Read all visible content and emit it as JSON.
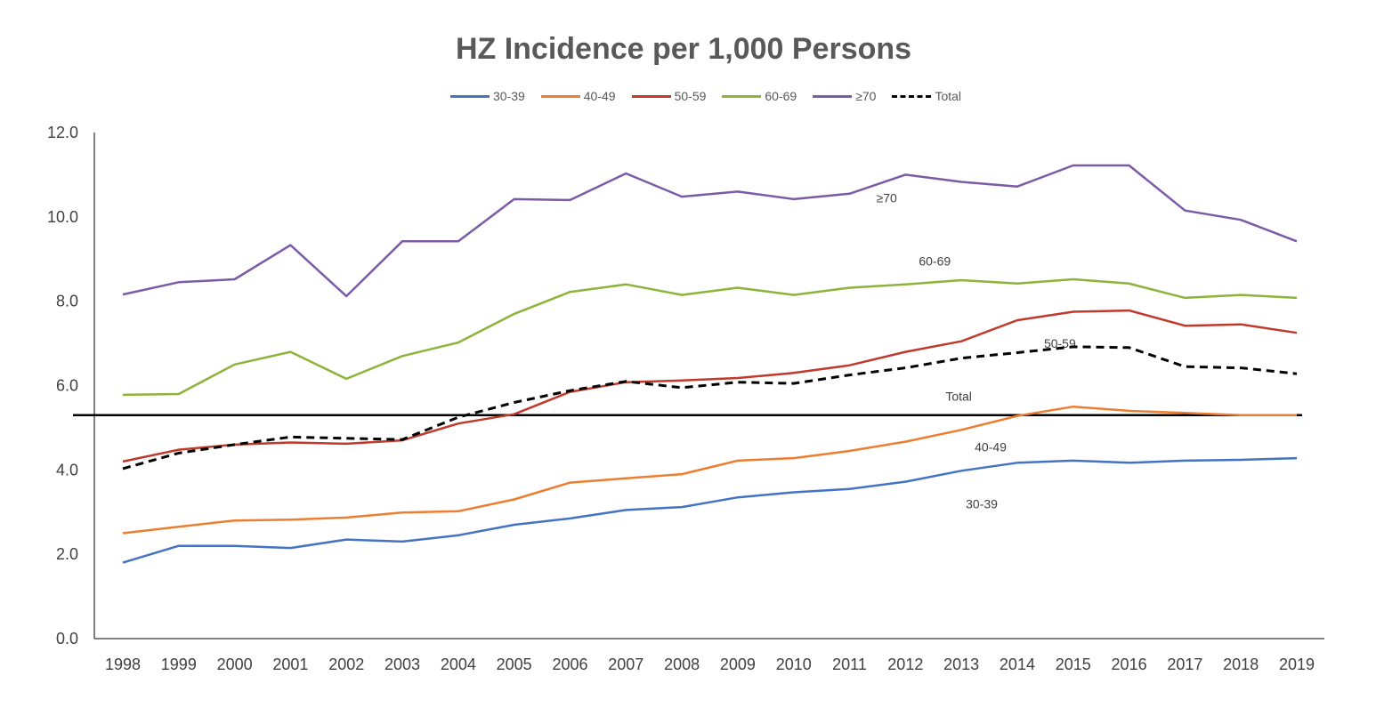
{
  "chart_data": {
    "type": "line",
    "title": "HZ Incidence per 1,000 Persons",
    "xlabel": "",
    "ylabel": "",
    "x": [
      "1998",
      "1999",
      "2000",
      "2001",
      "2002",
      "2003",
      "2004",
      "2005",
      "2006",
      "2007",
      "2008",
      "2009",
      "2010",
      "2011",
      "2012",
      "2013",
      "2014",
      "2015",
      "2016",
      "2017",
      "2018",
      "2019"
    ],
    "ylim": [
      0,
      12
    ],
    "yticks": [
      "0.0",
      "2.0",
      "4.0",
      "6.0",
      "8.0",
      "10.0",
      "12.0"
    ],
    "grid": false,
    "legend_position": "top",
    "reference_line_y": 5.3,
    "series": [
      {
        "name": "30-39",
        "label": "30-39",
        "color": "#4472C4",
        "dashed": false,
        "label_x": "2013",
        "label_y": 3.2,
        "values": [
          1.8,
          2.2,
          2.2,
          2.15,
          2.35,
          2.3,
          2.45,
          2.7,
          2.85,
          3.05,
          3.12,
          3.35,
          3.47,
          3.55,
          3.72,
          3.98,
          4.17,
          4.22,
          4.17,
          4.22,
          4.24,
          4.28
        ]
      },
      {
        "name": "40-49",
        "label": "40-49",
        "color": "#ED7D31",
        "dashed": false,
        "label_x": "2013",
        "label_y": 4.55,
        "values": [
          2.5,
          2.65,
          2.8,
          2.82,
          2.87,
          2.99,
          3.02,
          3.3,
          3.7,
          3.8,
          3.9,
          4.22,
          4.28,
          4.45,
          4.67,
          4.95,
          5.28,
          5.5,
          5.4,
          5.35,
          5.3,
          5.3
        ]
      },
      {
        "name": "50-59",
        "label": "50-59",
        "color": "#C0392B",
        "dashed": false,
        "label_x": "2014",
        "label_y": 7.0,
        "values": [
          4.2,
          4.48,
          4.6,
          4.65,
          4.62,
          4.7,
          5.1,
          5.32,
          5.85,
          6.08,
          6.12,
          6.18,
          6.3,
          6.48,
          6.8,
          7.05,
          7.55,
          7.75,
          7.78,
          7.42,
          7.45,
          7.25
        ]
      },
      {
        "name": "60-69",
        "label": "60-69",
        "color": "#8DB33A",
        "dashed": false,
        "label_x": "2012",
        "label_y": 8.95,
        "values": [
          5.78,
          5.8,
          6.5,
          6.8,
          6.16,
          6.7,
          7.02,
          7.7,
          8.22,
          8.4,
          8.15,
          8.32,
          8.15,
          8.32,
          8.4,
          8.5,
          8.42,
          8.52,
          8.42,
          8.08,
          8.15,
          8.08
        ]
      },
      {
        "name": "≥70",
        "label": "≥70",
        "color": "#7B5BA6",
        "dashed": false,
        "label_x": "2011",
        "label_y": 10.45,
        "values": [
          8.16,
          8.45,
          8.52,
          9.33,
          8.12,
          9.42,
          9.42,
          10.42,
          10.4,
          11.03,
          10.48,
          10.6,
          10.42,
          10.55,
          11.0,
          10.83,
          10.72,
          11.22,
          11.22,
          10.15,
          9.93,
          9.42
        ]
      },
      {
        "name": "Total",
        "label": "Total",
        "color": "#000000",
        "dashed": true,
        "label_x": "2012",
        "label_y": 5.75,
        "values": [
          4.03,
          4.4,
          4.6,
          4.78,
          4.75,
          4.72,
          5.25,
          5.6,
          5.88,
          6.1,
          5.95,
          6.08,
          6.05,
          6.25,
          6.42,
          6.65,
          6.78,
          6.92,
          6.9,
          6.45,
          6.42,
          6.28
        ]
      }
    ]
  }
}
